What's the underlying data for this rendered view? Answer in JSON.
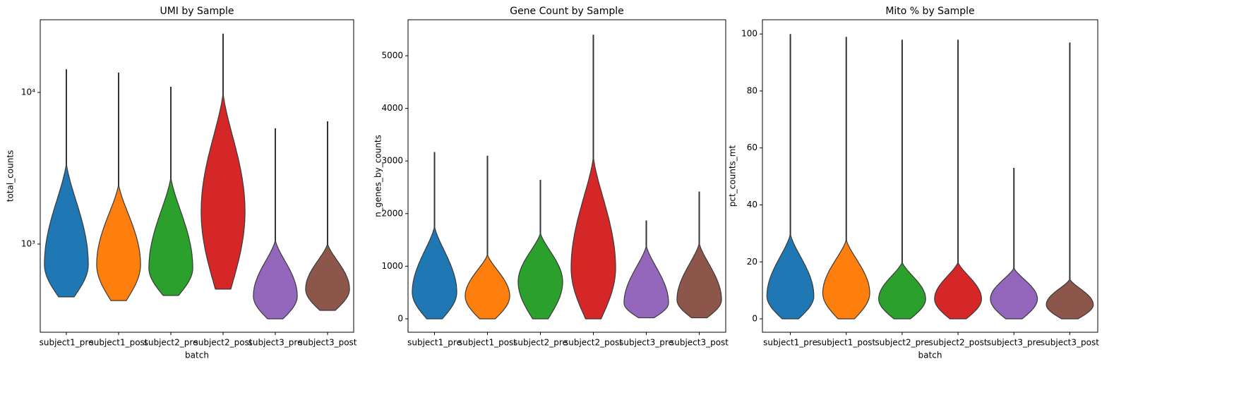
{
  "chart_data": [
    {
      "type": "violin",
      "title": "UMI by Sample",
      "xlabel": "batch",
      "ylabel": "total_counts",
      "log": true,
      "categories": [
        "subject1_pre",
        "subject1_post",
        "subject2_pre",
        "subject2_post",
        "subject3_pre",
        "subject3_post"
      ],
      "colors": [
        "#1f77b4",
        "#ff7f0e",
        "#2ca02c",
        "#d62728",
        "#9467bd",
        "#8c564b"
      ],
      "min": [
        448,
        424,
        458,
        504,
        321,
        365
      ],
      "mode": [
        733,
        733,
        695,
        1636,
        453,
        504
      ],
      "body_top": [
        3460,
        2510,
        2800,
        10100,
        1066,
        1010
      ],
      "max": [
        14200,
        13500,
        10900,
        24400,
        5800,
        6450
      ],
      "ylim": [
        262,
        30150
      ],
      "yticks": [
        {
          "value": 1000,
          "label": "10³"
        },
        {
          "value": 10000,
          "label": "10⁴"
        }
      ]
    },
    {
      "type": "violin",
      "title": "Gene Count by Sample",
      "ylabel": "n_genes_by_counts",
      "log": false,
      "categories": [
        "subject1_pre",
        "subject1_post",
        "subject2_pre",
        "subject2_post",
        "subject3_pre",
        "subject3_post"
      ],
      "colors": [
        "#1f77b4",
        "#ff7f0e",
        "#2ca02c",
        "#d62728",
        "#9467bd",
        "#8c564b"
      ],
      "min": [
        0,
        0,
        0,
        0,
        20,
        20
      ],
      "mode": [
        500,
        430,
        700,
        960,
        300,
        360
      ],
      "body_top": [
        1770,
        1230,
        1640,
        3100,
        1400,
        1450
      ],
      "max": [
        3170,
        3100,
        2640,
        5400,
        1870,
        2420
      ],
      "ylim": [
        -255,
        5684
      ],
      "yticks": [
        0,
        1000,
        2000,
        3000,
        4000,
        5000
      ]
    },
    {
      "type": "violin",
      "title": "Mito % by Sample",
      "xlabel": "batch",
      "ylabel": "pct_counts_mt",
      "log": false,
      "categories": [
        "subject1_pre",
        "subject1_post",
        "subject2_pre",
        "subject2_post",
        "subject3_pre",
        "subject3_post"
      ],
      "colors": [
        "#1f77b4",
        "#ff7f0e",
        "#2ca02c",
        "#d62728",
        "#9467bd",
        "#8c564b"
      ],
      "min": [
        0,
        0,
        0,
        0,
        0,
        0
      ],
      "mode": [
        8,
        9,
        7,
        7,
        7,
        5
      ],
      "body_top": [
        30,
        28,
        20,
        20,
        18,
        14
      ],
      "max": [
        100,
        99,
        98,
        98,
        53,
        97
      ],
      "ylim": [
        -4.7,
        105
      ],
      "yticks": [
        0,
        20,
        40,
        60,
        80,
        100
      ]
    }
  ]
}
